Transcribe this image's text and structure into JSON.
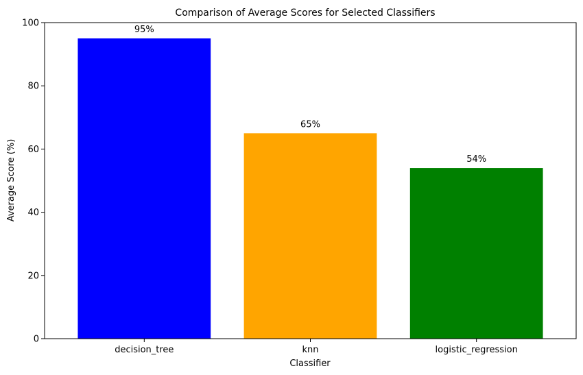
{
  "chart_data": {
    "type": "bar",
    "title": "Comparison of Average Scores for Selected Classifiers",
    "xlabel": "Classifier",
    "ylabel": "Average Score (%)",
    "categories": [
      "decision_tree",
      "knn",
      "logistic_regression"
    ],
    "values": [
      95,
      65,
      54
    ],
    "value_labels": [
      "95%",
      "65%",
      "54%"
    ],
    "colors": [
      "#0000ff",
      "#ffa500",
      "#008000"
    ],
    "ylim": [
      0,
      100
    ],
    "yticks": [
      0,
      20,
      40,
      60,
      80,
      100
    ],
    "yticklabels": [
      "0",
      "20",
      "40",
      "60",
      "80",
      "100"
    ],
    "grid": false,
    "legend": false
  }
}
